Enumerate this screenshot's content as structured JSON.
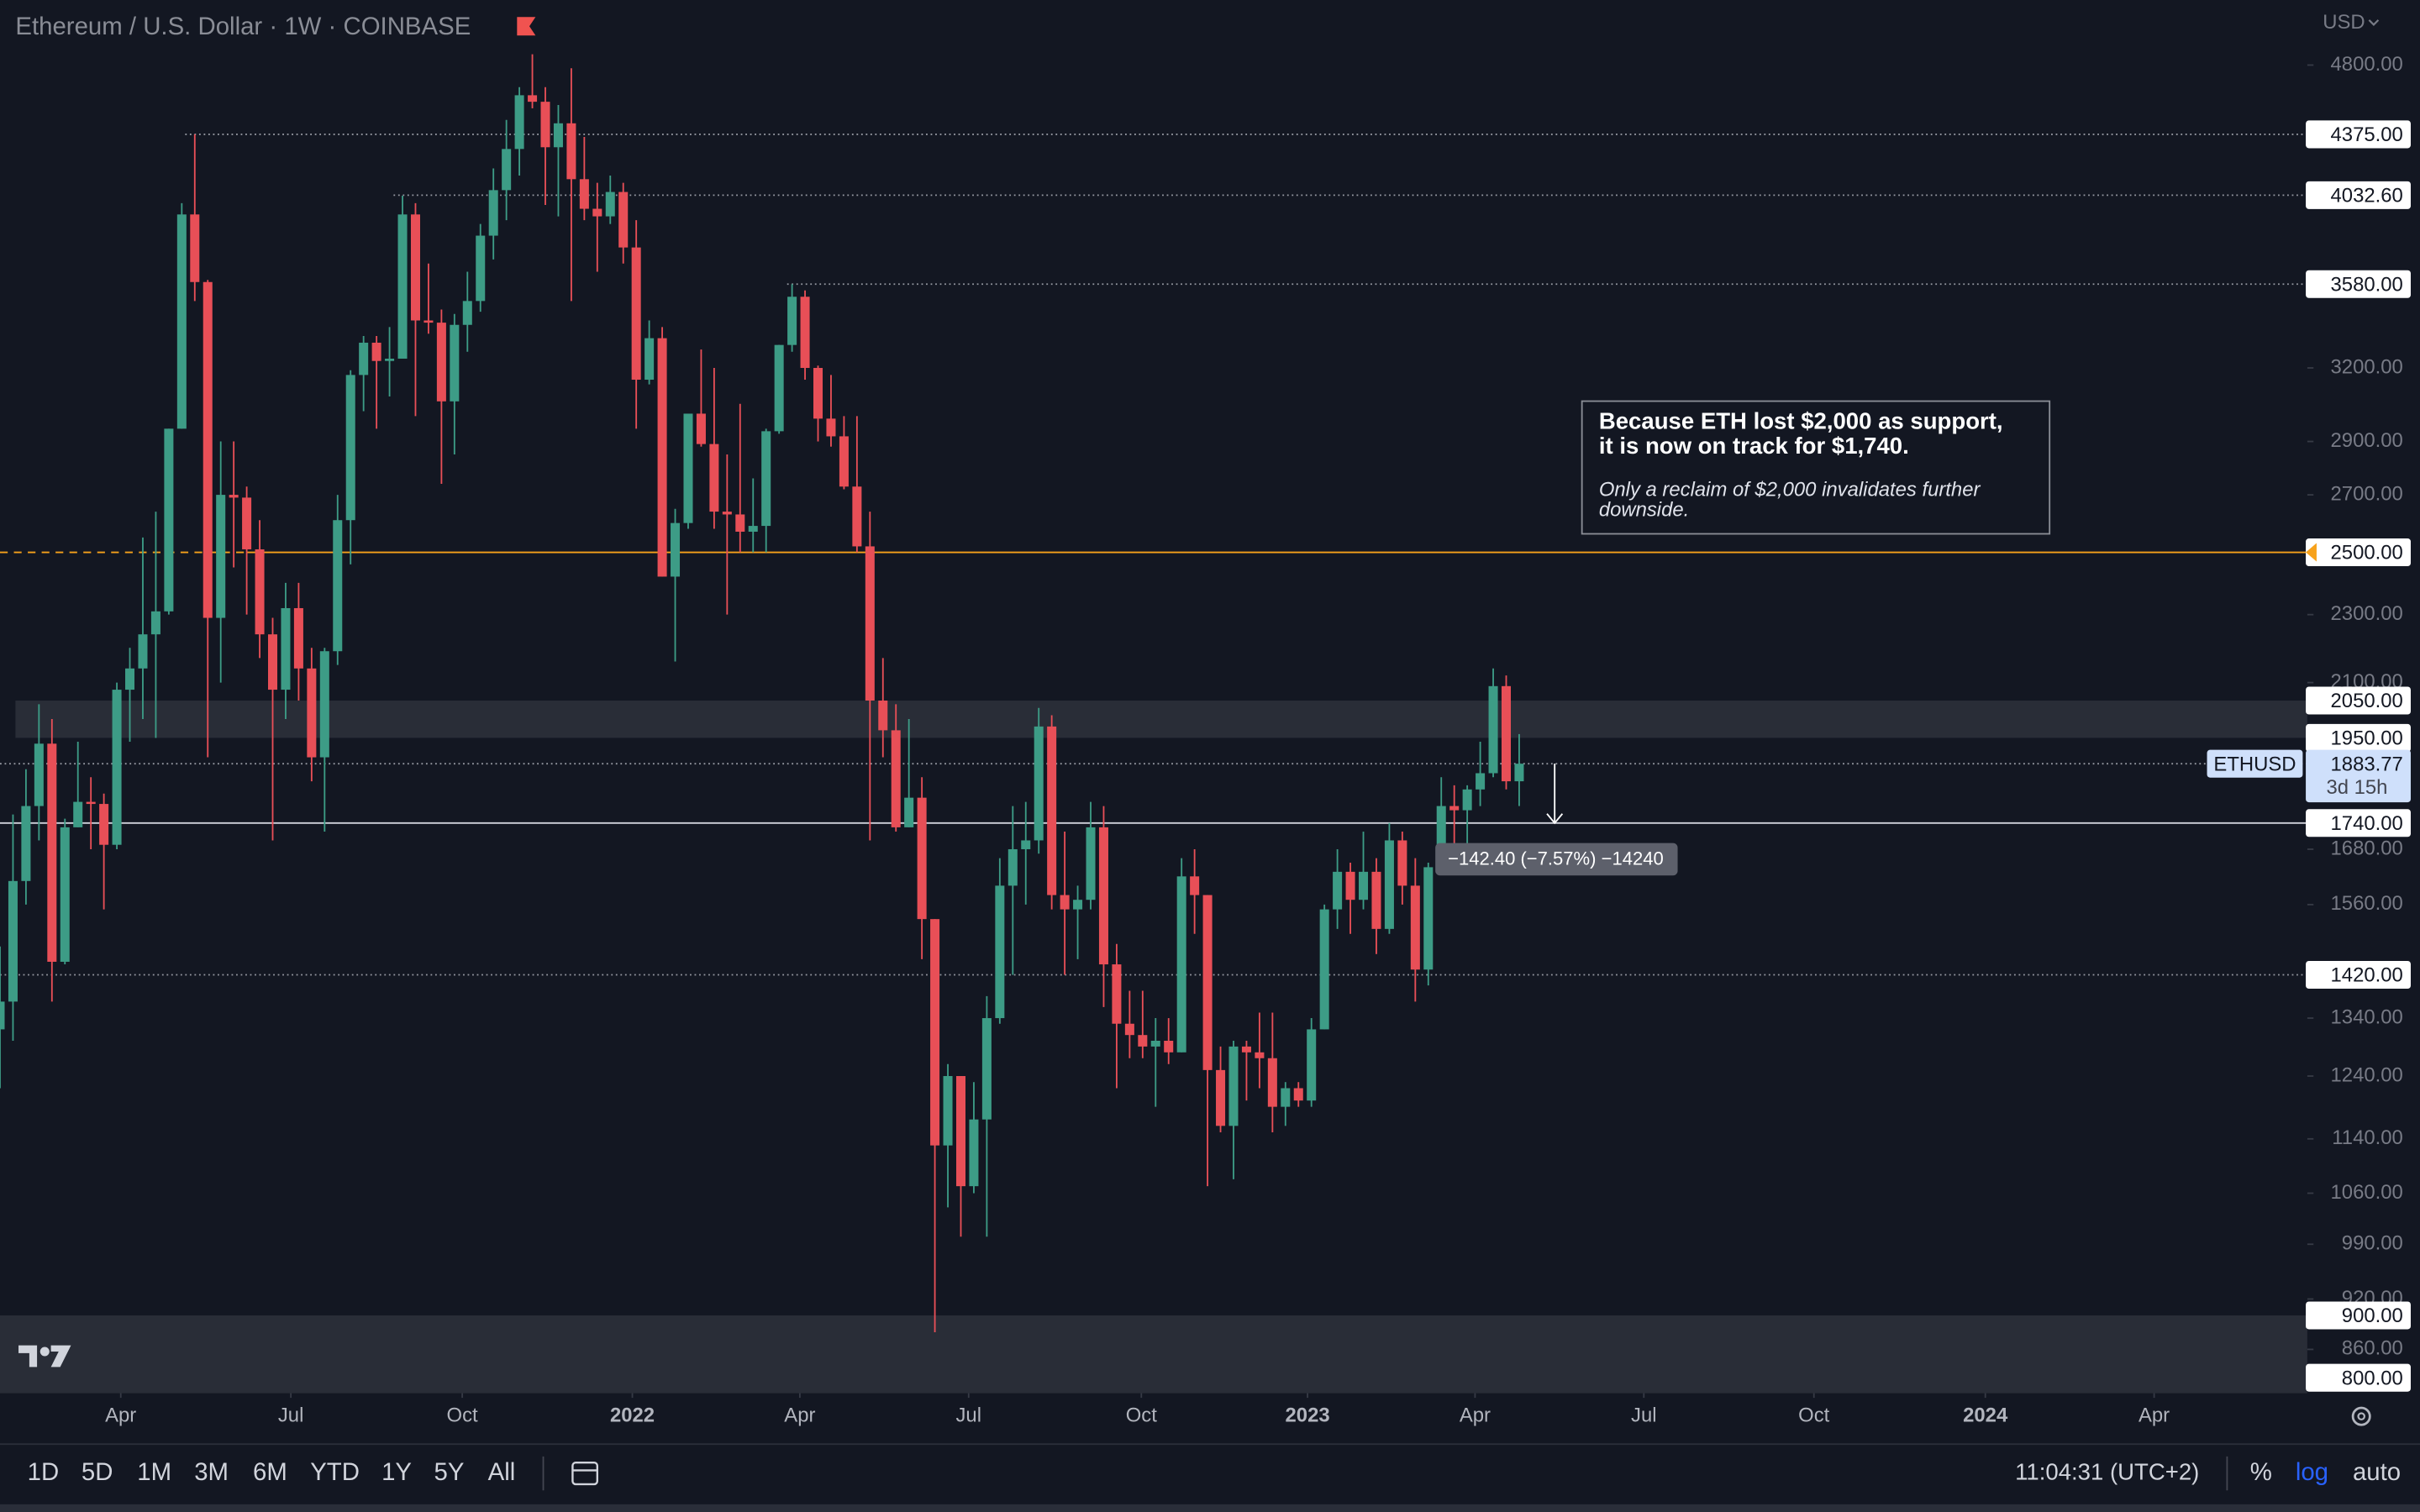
{
  "chart_data": {
    "type": "candlestick",
    "title": "Ethereum / U.S. Dollar · 1W · COINBASE",
    "currency": "USD",
    "log_scale": true,
    "up_color": "#3d9c86",
    "down_color": "#e84f57",
    "ylim": [
      811,
      5237
    ],
    "yticks": [
      {
        "value": 4800,
        "label": "4800.00"
      },
      {
        "value": 3200,
        "label": "3200.00"
      },
      {
        "value": 2900,
        "label": "2900.00"
      },
      {
        "value": 2700,
        "label": "2700.00"
      },
      {
        "value": 2300,
        "label": "2300.00"
      },
      {
        "value": 2100,
        "label": "2100.00"
      },
      {
        "value": 1680,
        "label": "1680.00"
      },
      {
        "value": 1560,
        "label": "1560.00"
      },
      {
        "value": 1340,
        "label": "1340.00"
      },
      {
        "value": 1240,
        "label": "1240.00"
      },
      {
        "value": 1140,
        "label": "1140.00"
      },
      {
        "value": 1060,
        "label": "1060.00"
      },
      {
        "value": 990,
        "label": "990.00"
      },
      {
        "value": 920,
        "label": "920.00"
      },
      {
        "value": 860,
        "label": "860.00"
      }
    ],
    "xlim": [
      0,
      177.7
    ],
    "xticks": [
      {
        "value": 9.3,
        "label": "Apr"
      },
      {
        "value": 22.4,
        "label": "Jul"
      },
      {
        "value": 35.6,
        "label": "Oct"
      },
      {
        "value": 48.7,
        "label": "2022"
      },
      {
        "value": 61.6,
        "label": "Apr"
      },
      {
        "value": 74.6,
        "label": "Jul"
      },
      {
        "value": 87.9,
        "label": "Oct"
      },
      {
        "value": 100.7,
        "label": "2023"
      },
      {
        "value": 113.6,
        "label": "Apr"
      },
      {
        "value": 126.6,
        "label": "Jul"
      },
      {
        "value": 139.7,
        "label": "Oct"
      },
      {
        "value": 152.9,
        "label": "2024"
      },
      {
        "value": 165.9,
        "label": "Apr"
      }
    ],
    "series": {
      "open": [
        1320,
        1370,
        1610,
        1780,
        1935,
        1445,
        1730,
        1790,
        1785,
        1690,
        2080,
        2140,
        2240,
        2310,
        2950,
        3930,
        3590,
        2290,
        2700,
        2690,
        2510,
        2240,
        2080,
        2320,
        2140,
        1900,
        2190,
        2610,
        3170,
        3310,
        3230,
        3240,
        3930,
        3410,
        3400,
        3060,
        3390,
        3500,
        3820,
        4060,
        4290,
        4610,
        4570,
        4300,
        4440,
        4120,
        3960,
        3920,
        4050,
        3760,
        3150,
        3330,
        2420,
        2600,
        3010,
        2890,
        2640,
        2630,
        2570,
        2590,
        2940,
        3300,
        3520,
        3200,
        2990,
        2920,
        2730,
        2520,
        2050,
        1970,
        1730,
        1800,
        1530,
        1130,
        1240,
        1070,
        1170,
        1340,
        1600,
        1680,
        1700,
        1980,
        1580,
        1550,
        1570,
        1730,
        1440,
        1330,
        1310,
        1290,
        1300,
        1280,
        1620,
        1580,
        1250,
        1160,
        1290,
        1280,
        1270,
        1190,
        1220,
        1200,
        1320,
        1550,
        1630,
        1570,
        1630,
        1510,
        1700,
        1600,
        1430,
        1640,
        1780,
        1770,
        1820,
        1860,
        2090,
        1840
      ],
      "high": [
        1475,
        1760,
        1870,
        2040,
        2000,
        1750,
        1940,
        1850,
        1810,
        2100,
        2200,
        2550,
        2640,
        2950,
        3990,
        4375,
        3600,
        2900,
        2900,
        2730,
        2610,
        2290,
        2400,
        2400,
        2200,
        2200,
        2700,
        3190,
        3340,
        3340,
        3380,
        4030,
        3990,
        3680,
        3460,
        3440,
        3640,
        3880,
        4180,
        4460,
        4660,
        4870,
        4660,
        4550,
        4780,
        4360,
        4100,
        4140,
        4100,
        3900,
        3410,
        3380,
        2650,
        3010,
        3280,
        3200,
        2850,
        3050,
        2760,
        2950,
        3300,
        3580,
        3550,
        3210,
        3170,
        3000,
        3000,
        2640,
        2170,
        2040,
        2000,
        1850,
        1530,
        1260,
        1240,
        1230,
        1380,
        1660,
        1780,
        1790,
        2030,
        2010,
        1720,
        1600,
        1790,
        1780,
        1480,
        1390,
        1390,
        1340,
        1340,
        1660,
        1680,
        1580,
        1290,
        1300,
        1300,
        1350,
        1350,
        1230,
        1230,
        1340,
        1560,
        1680,
        1650,
        1720,
        1660,
        1740,
        1720,
        1660,
        1650,
        1850,
        1830,
        1830,
        1940,
        2140,
        2120,
        1960
      ],
      "low": [
        1220,
        1300,
        1560,
        1700,
        1370,
        1440,
        1730,
        1680,
        1550,
        1680,
        1940,
        2000,
        1950,
        2300,
        2950,
        3500,
        1900,
        2100,
        2450,
        2300,
        2170,
        1700,
        2000,
        2050,
        1840,
        1720,
        2150,
        2460,
        3020,
        2950,
        3080,
        3240,
        3000,
        3350,
        2740,
        2850,
        3270,
        3450,
        3700,
        3900,
        4140,
        4530,
        3980,
        3920,
        3500,
        3900,
        3640,
        3880,
        3680,
        2950,
        3130,
        2420,
        2160,
        2580,
        2880,
        2580,
        2300,
        2500,
        2500,
        2500,
        2930,
        3270,
        3150,
        2900,
        2880,
        2720,
        2500,
        1700,
        1900,
        1720,
        1730,
        1450,
        880,
        1040,
        1000,
        1060,
        1000,
        1330,
        1420,
        1560,
        1670,
        1550,
        1420,
        1450,
        1550,
        1360,
        1220,
        1270,
        1270,
        1190,
        1260,
        1280,
        1500,
        1070,
        1150,
        1080,
        1200,
        1220,
        1150,
        1160,
        1190,
        1190,
        1320,
        1510,
        1500,
        1550,
        1460,
        1500,
        1560,
        1370,
        1400,
        1640,
        1680,
        1690,
        1780,
        1850,
        1820,
        1780
      ],
      "close": [
        1370,
        1610,
        1780,
        1935,
        1445,
        1730,
        1790,
        1785,
        1690,
        2080,
        2140,
        2240,
        2310,
        2950,
        3930,
        3590,
        2290,
        2700,
        2690,
        2510,
        2240,
        2080,
        2320,
        2140,
        1900,
        2190,
        2610,
        3170,
        3310,
        3230,
        3240,
        3930,
        3410,
        3400,
        3060,
        3390,
        3500,
        3820,
        4060,
        4290,
        4610,
        4570,
        4300,
        4440,
        4120,
        3960,
        3920,
        4050,
        3760,
        3150,
        3330,
        2420,
        2600,
        3010,
        2890,
        2640,
        2630,
        2570,
        2590,
        2940,
        3300,
        3520,
        3200,
        2990,
        2920,
        2730,
        2520,
        2050,
        1970,
        1730,
        1800,
        1530,
        1130,
        1240,
        1070,
        1170,
        1340,
        1600,
        1680,
        1700,
        1980,
        1580,
        1550,
        1570,
        1730,
        1440,
        1330,
        1310,
        1290,
        1300,
        1280,
        1620,
        1580,
        1250,
        1160,
        1290,
        1280,
        1270,
        1190,
        1220,
        1200,
        1320,
        1550,
        1630,
        1570,
        1630,
        1510,
        1700,
        1600,
        1430,
        1640,
        1780,
        1770,
        1820,
        1860,
        2090,
        1840,
        1883.77
      ]
    },
    "levels": [
      {
        "value": 4375,
        "label": "4375.00",
        "style": "dotted"
      },
      {
        "value": 4032.6,
        "label": "4032.60",
        "style": "dotted"
      },
      {
        "value": 3580,
        "label": "3580.00",
        "style": "dotted"
      },
      {
        "value": 2500,
        "label": "2500.00",
        "style": "dashed",
        "color": "#f7a21b"
      },
      {
        "value": 1740,
        "label": "1740.00",
        "style": "solid"
      },
      {
        "value": 1420,
        "label": "1420.00",
        "style": "dotted"
      }
    ],
    "zones": [
      {
        "high": {
          "value": 2050,
          "label": "2050.00"
        },
        "low": {
          "value": 1950,
          "label": "1950.00"
        }
      },
      {
        "high": {
          "value": 900,
          "label": "900.00"
        },
        "low": {
          "value": 800,
          "label": "800.00"
        }
      }
    ],
    "price": {
      "symbol": "ETHUSD",
      "label": "1883.77",
      "countdown": "3d 15h"
    },
    "measure": "−142.40 (−7.57%) −14240",
    "annotation": {
      "heading": [
        "Because ETH lost $2,000 as support,",
        "it is now on track for $1,740."
      ],
      "body": [
        "Only a reclaim of $2,000 invalidates further",
        "downside."
      ]
    }
  },
  "toolbar": {
    "ranges": [
      "1D",
      "5D",
      "1M",
      "3M",
      "6M",
      "YTD",
      "1Y",
      "5Y",
      "All"
    ],
    "clock": "11:04:31 (UTC+2)",
    "percent": "%",
    "log": "log",
    "auto": "auto"
  }
}
